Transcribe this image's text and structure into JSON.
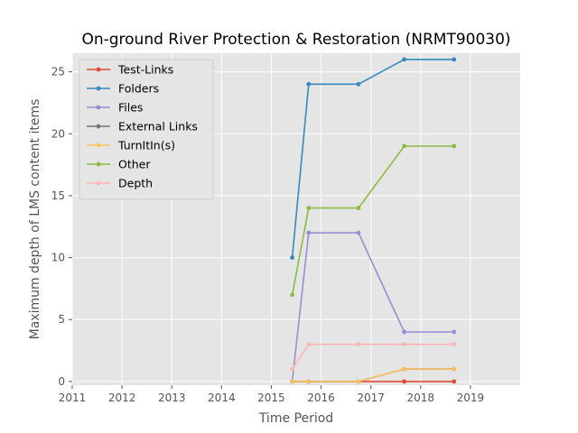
{
  "chart_data": {
    "type": "line",
    "title": "On-ground River Protection & Restoration (NRMT90030)",
    "xlabel": "Time Period",
    "ylabel": "Maximum depth of LMS content items",
    "xlim": [
      2011,
      2020
    ],
    "ylim": [
      -0.3,
      26.5
    ],
    "xticks": [
      "2011",
      "2012",
      "2013",
      "2014",
      "2015",
      "2016",
      "2017",
      "2018",
      "2019"
    ],
    "yticks": [
      "0",
      "5",
      "10",
      "15",
      "20",
      "25"
    ],
    "grid": true,
    "legend_position": "top-left",
    "x": [
      2015.42,
      2015.75,
      2016.75,
      2017.67,
      2018.67
    ],
    "series": [
      {
        "name": "Test-Links",
        "color": "#E24A33",
        "values": [
          0,
          0,
          0,
          0,
          0
        ]
      },
      {
        "name": "Folders",
        "color": "#348ABD",
        "values": [
          10,
          24,
          24,
          26,
          26
        ]
      },
      {
        "name": "Files",
        "color": "#988ED5",
        "values": [
          0,
          12,
          12,
          4,
          4
        ]
      },
      {
        "name": "External Links",
        "color": "#777777",
        "values": [
          0,
          0,
          0,
          1,
          1
        ]
      },
      {
        "name": "TurnItIn(s)",
        "color": "#FBC15E",
        "values": [
          0,
          0,
          0,
          1,
          1
        ]
      },
      {
        "name": "Other",
        "color": "#8EBA42",
        "values": [
          7,
          14,
          14,
          19,
          19
        ]
      },
      {
        "name": "Depth",
        "color": "#FFB5B8",
        "values": [
          1,
          3,
          3,
          3,
          3
        ]
      }
    ]
  }
}
